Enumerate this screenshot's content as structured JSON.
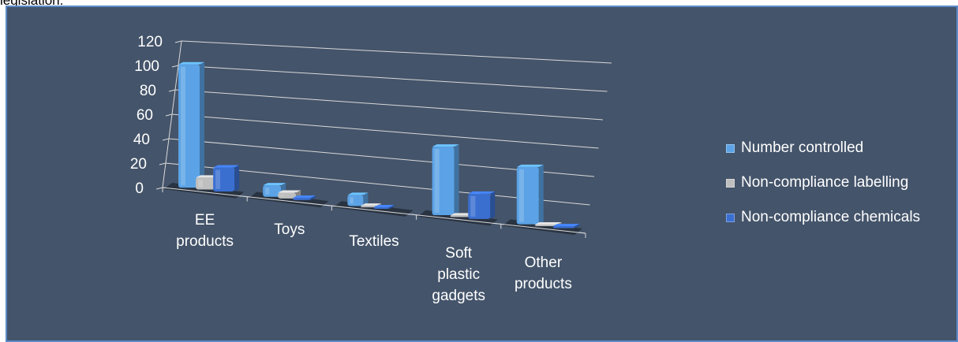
{
  "top_caption": "legislation.",
  "colors": {
    "panel_bg": "#44546a",
    "panel_border": "#5b8ac9",
    "gridline": "#d9d9d9",
    "floor_shadow": "#252e3a"
  },
  "chart_data": {
    "type": "bar",
    "categories": [
      "EE\nproducts",
      "Toys",
      "Textiles",
      "Soft\nplastic\ngadgets",
      "Other\nproducts"
    ],
    "series": [
      {
        "name": "Number controlled",
        "values": [
          103,
          10,
          10,
          65,
          57
        ],
        "color": "#5ba3e6"
      },
      {
        "name": "Non-compliance labelling",
        "values": [
          10,
          5,
          0,
          0,
          0
        ],
        "color": "#bfbfbf"
      },
      {
        "name": "Non-compliance chemicals",
        "values": [
          20,
          2,
          1,
          24,
          2
        ],
        "color": "#3a6fd0"
      }
    ],
    "y_ticks": [
      "0",
      "20",
      "40",
      "60",
      "80",
      "100",
      "120"
    ],
    "ylim": [
      0,
      120
    ],
    "grid": true,
    "legend_position": "right",
    "projection": "3d-perspective"
  }
}
